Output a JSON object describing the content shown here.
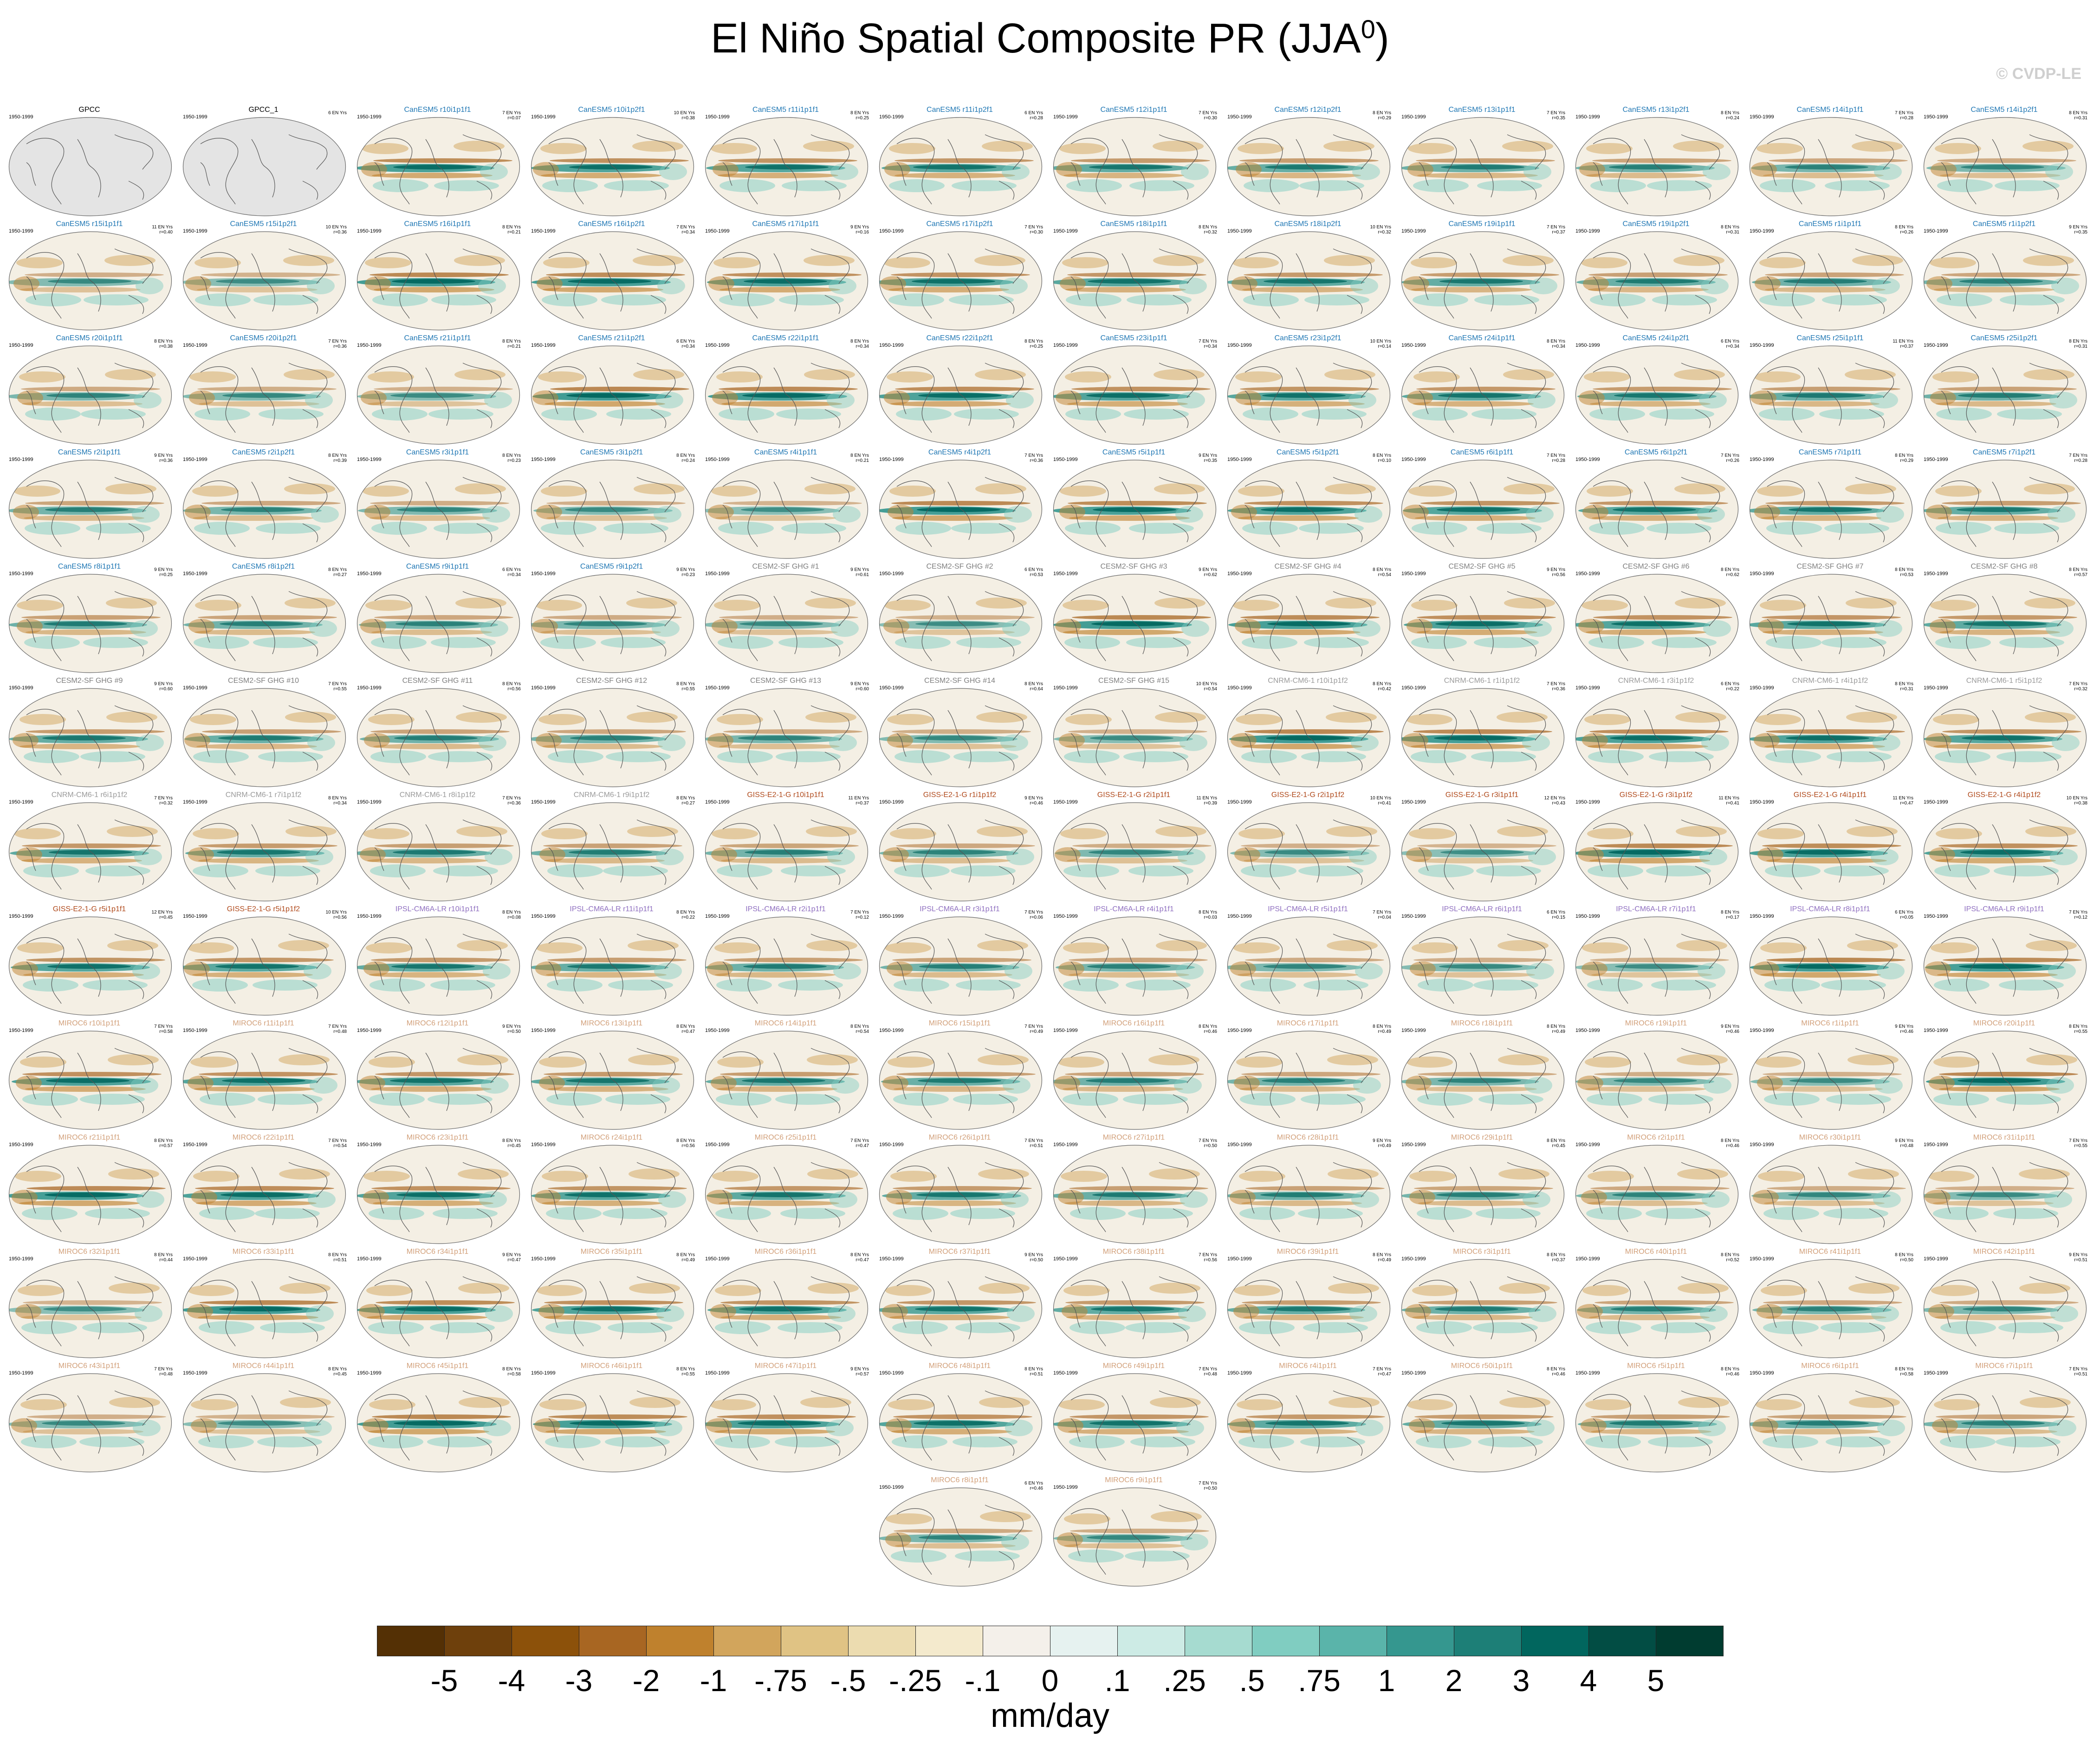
{
  "title": "El Niño Spatial Composite PR (JJA",
  "title_sup": "0",
  "title_close": ")",
  "watermark": "© CVDP-LE",
  "units": "mm/day",
  "years_label": "1950-1999",
  "colorbar": {
    "labels": [
      "-5",
      "-4",
      "-3",
      "-2",
      "-1",
      "-.75",
      "-.5",
      "-.25",
      "-.1",
      "0",
      ".1",
      ".25",
      ".5",
      ".75",
      "1",
      "2",
      "3",
      "4",
      "5"
    ],
    "colors": [
      "#543005",
      "#6e400c",
      "#8c510a",
      "#a86622",
      "#bf812d",
      "#d2a55c",
      "#e0c384",
      "#ecdcb0",
      "#f4eacd",
      "#f4f0ea",
      "#e6f2f0",
      "#cdebe5",
      "#a6dbd0",
      "#80cdc1",
      "#5ab4aa",
      "#35978f",
      "#1d7f77",
      "#01665e",
      "#024d44",
      "#003c30"
    ]
  },
  "group_colors": {
    "obs": "#000000",
    "CanESM5": "#1f77b4",
    "CESM2-SF GHG": "#7f7f7f",
    "CNRM-CM6-1": "#9a9a9a",
    "GISS-E2-1-G": "#b04a1c",
    "IPSL-CM6A-LR": "#8f6fc0",
    "MIROC6": "#d2a07a"
  },
  "panels": [
    {
      "title": "GPCC",
      "group": "obs",
      "stat": ""
    },
    {
      "title": "GPCC_1",
      "group": "obs",
      "stat": "6 EN Yrs"
    },
    {
      "title": "CanESM5 r10i1p1f1",
      "group": "CanESM5",
      "stat": "7 EN Yrs\nr=0.07"
    },
    {
      "title": "CanESM5 r10i1p2f1",
      "group": "CanESM5",
      "stat": "10 EN Yrs\nr=0.38"
    },
    {
      "title": "CanESM5 r11i1p1f1",
      "group": "CanESM5",
      "stat": "8 EN Yrs\nr=0.25"
    },
    {
      "title": "CanESM5 r11i1p2f1",
      "group": "CanESM5",
      "stat": "6 EN Yrs\nr=0.28"
    },
    {
      "title": "CanESM5 r12i1p1f1",
      "group": "CanESM5",
      "stat": "7 EN Yrs\nr=0.30"
    },
    {
      "title": "CanESM5 r12i1p2f1",
      "group": "CanESM5",
      "stat": "8 EN Yrs\nr=0.29"
    },
    {
      "title": "CanESM5 r13i1p1f1",
      "group": "CanESM5",
      "stat": "7 EN Yrs\nr=0.35"
    },
    {
      "title": "CanESM5 r13i1p2f1",
      "group": "CanESM5",
      "stat": "8 EN Yrs\nr=0.24"
    },
    {
      "title": "CanESM5 r14i1p1f1",
      "group": "CanESM5",
      "stat": "7 EN Yrs\nr=0.28"
    },
    {
      "title": "CanESM5 r14i1p2f1",
      "group": "CanESM5",
      "stat": "8 EN Yrs\nr=0.31"
    },
    {
      "title": "CanESM5 r15i1p1f1",
      "group": "CanESM5",
      "stat": "11 EN Yrs\nr=0.40"
    },
    {
      "title": "CanESM5 r15i1p2f1",
      "group": "CanESM5",
      "stat": "10 EN Yrs\nr=0.36"
    },
    {
      "title": "CanESM5 r16i1p1f1",
      "group": "CanESM5",
      "stat": "8 EN Yrs\nr=0.21"
    },
    {
      "title": "CanESM5 r16i1p2f1",
      "group": "CanESM5",
      "stat": "7 EN Yrs\nr=0.34"
    },
    {
      "title": "CanESM5 r17i1p1f1",
      "group": "CanESM5",
      "stat": "9 EN Yrs\nr=0.16"
    },
    {
      "title": "CanESM5 r17i1p2f1",
      "group": "CanESM5",
      "stat": "7 EN Yrs\nr=0.30"
    },
    {
      "title": "CanESM5 r18i1p1f1",
      "group": "CanESM5",
      "stat": "8 EN Yrs\nr=0.32"
    },
    {
      "title": "CanESM5 r18i1p2f1",
      "group": "CanESM5",
      "stat": "10 EN Yrs\nr=0.32"
    },
    {
      "title": "CanESM5 r19i1p1f1",
      "group": "CanESM5",
      "stat": "7 EN Yrs\nr=0.37"
    },
    {
      "title": "CanESM5 r19i1p2f1",
      "group": "CanESM5",
      "stat": "8 EN Yrs\nr=0.31"
    },
    {
      "title": "CanESM5 r1i1p1f1",
      "group": "CanESM5",
      "stat": "8 EN Yrs\nr=0.26"
    },
    {
      "title": "CanESM5 r1i1p2f1",
      "group": "CanESM5",
      "stat": "9 EN Yrs\nr=0.35"
    },
    {
      "title": "CanESM5 r20i1p1f1",
      "group": "CanESM5",
      "stat": "8 EN Yrs\nr=0.38"
    },
    {
      "title": "CanESM5 r20i1p2f1",
      "group": "CanESM5",
      "stat": "7 EN Yrs\nr=0.36"
    },
    {
      "title": "CanESM5 r21i1p1f1",
      "group": "CanESM5",
      "stat": "8 EN Yrs\nr=0.21"
    },
    {
      "title": "CanESM5 r21i1p2f1",
      "group": "CanESM5",
      "stat": "6 EN Yrs\nr=0.34"
    },
    {
      "title": "CanESM5 r22i1p1f1",
      "group": "CanESM5",
      "stat": "8 EN Yrs\nr=0.34"
    },
    {
      "title": "CanESM5 r22i1p2f1",
      "group": "CanESM5",
      "stat": "8 EN Yrs\nr=0.25"
    },
    {
      "title": "CanESM5 r23i1p1f1",
      "group": "CanESM5",
      "stat": "7 EN Yrs\nr=0.34"
    },
    {
      "title": "CanESM5 r23i1p2f1",
      "group": "CanESM5",
      "stat": "10 EN Yrs\nr=0.14"
    },
    {
      "title": "CanESM5 r24i1p1f1",
      "group": "CanESM5",
      "stat": "8 EN Yrs\nr=0.34"
    },
    {
      "title": "CanESM5 r24i1p2f1",
      "group": "CanESM5",
      "stat": "6 EN Yrs\nr=0.34"
    },
    {
      "title": "CanESM5 r25i1p1f1",
      "group": "CanESM5",
      "stat": "11 EN Yrs\nr=0.37"
    },
    {
      "title": "CanESM5 r25i1p2f1",
      "group": "CanESM5",
      "stat": "8 EN Yrs\nr=0.31"
    },
    {
      "title": "CanESM5 r2i1p1f1",
      "group": "CanESM5",
      "stat": "9 EN Yrs\nr=0.36"
    },
    {
      "title": "CanESM5 r2i1p2f1",
      "group": "CanESM5",
      "stat": "8 EN Yrs\nr=0.39"
    },
    {
      "title": "CanESM5 r3i1p1f1",
      "group": "CanESM5",
      "stat": "8 EN Yrs\nr=0.23"
    },
    {
      "title": "CanESM5 r3i1p2f1",
      "group": "CanESM5",
      "stat": "8 EN Yrs\nr=0.24"
    },
    {
      "title": "CanESM5 r4i1p1f1",
      "group": "CanESM5",
      "stat": "8 EN Yrs\nr=0.21"
    },
    {
      "title": "CanESM5 r4i1p2f1",
      "group": "CanESM5",
      "stat": "7 EN Yrs\nr=0.36"
    },
    {
      "title": "CanESM5 r5i1p1f1",
      "group": "CanESM5",
      "stat": "9 EN Yrs\nr=0.35"
    },
    {
      "title": "CanESM5 r5i1p2f1",
      "group": "CanESM5",
      "stat": "8 EN Yrs\nr=0.10"
    },
    {
      "title": "CanESM5 r6i1p1f1",
      "group": "CanESM5",
      "stat": "7 EN Yrs\nr=0.28"
    },
    {
      "title": "CanESM5 r6i1p2f1",
      "group": "CanESM5",
      "stat": "7 EN Yrs\nr=0.26"
    },
    {
      "title": "CanESM5 r7i1p1f1",
      "group": "CanESM5",
      "stat": "8 EN Yrs\nr=0.29"
    },
    {
      "title": "CanESM5 r7i1p2f1",
      "group": "CanESM5",
      "stat": "7 EN Yrs\nr=0.28"
    },
    {
      "title": "CanESM5 r8i1p1f1",
      "group": "CanESM5",
      "stat": "9 EN Yrs\nr=0.25"
    },
    {
      "title": "CanESM5 r8i1p2f1",
      "group": "CanESM5",
      "stat": "8 EN Yrs\nr=0.27"
    },
    {
      "title": "CanESM5 r9i1p1f1",
      "group": "CanESM5",
      "stat": "6 EN Yrs\nr=0.34"
    },
    {
      "title": "CanESM5 r9i1p2f1",
      "group": "CanESM5",
      "stat": "9 EN Yrs\nr=0.23"
    },
    {
      "title": "CESM2-SF GHG #1",
      "group": "CESM2-SF GHG",
      "stat": "9 EN Yrs\nr=0.61"
    },
    {
      "title": "CESM2-SF GHG #2",
      "group": "CESM2-SF GHG",
      "stat": "6 EN Yrs\nr=0.53"
    },
    {
      "title": "CESM2-SF GHG #3",
      "group": "CESM2-SF GHG",
      "stat": "9 EN Yrs\nr=0.62"
    },
    {
      "title": "CESM2-SF GHG #4",
      "group": "CESM2-SF GHG",
      "stat": "8 EN Yrs\nr=0.54"
    },
    {
      "title": "CESM2-SF GHG #5",
      "group": "CESM2-SF GHG",
      "stat": "9 EN Yrs\nr=0.56"
    },
    {
      "title": "CESM2-SF GHG #6",
      "group": "CESM2-SF GHG",
      "stat": "8 EN Yrs\nr=0.62"
    },
    {
      "title": "CESM2-SF GHG #7",
      "group": "CESM2-SF GHG",
      "stat": "8 EN Yrs\nr=0.53"
    },
    {
      "title": "CESM2-SF GHG #8",
      "group": "CESM2-SF GHG",
      "stat": "8 EN Yrs\nr=0.57"
    },
    {
      "title": "CESM2-SF GHG #9",
      "group": "CESM2-SF GHG",
      "stat": "9 EN Yrs\nr=0.60"
    },
    {
      "title": "CESM2-SF GHG #10",
      "group": "CESM2-SF GHG",
      "stat": "7 EN Yrs\nr=0.55"
    },
    {
      "title": "CESM2-SF GHG #11",
      "group": "CESM2-SF GHG",
      "stat": "8 EN Yrs\nr=0.56"
    },
    {
      "title": "CESM2-SF GHG #12",
      "group": "CESM2-SF GHG",
      "stat": "8 EN Yrs\nr=0.55"
    },
    {
      "title": "CESM2-SF GHG #13",
      "group": "CESM2-SF GHG",
      "stat": "9 EN Yrs\nr=0.60"
    },
    {
      "title": "CESM2-SF GHG #14",
      "group": "CESM2-SF GHG",
      "stat": "8 EN Yrs\nr=0.64"
    },
    {
      "title": "CESM2-SF GHG #15",
      "group": "CESM2-SF GHG",
      "stat": "10 EN Yrs\nr=0.54"
    },
    {
      "title": "CNRM-CM6-1 r10i1p1f2",
      "group": "CNRM-CM6-1",
      "stat": "8 EN Yrs\nr=0.42"
    },
    {
      "title": "CNRM-CM6-1 r1i1p1f2",
      "group": "CNRM-CM6-1",
      "stat": "7 EN Yrs\nr=0.36"
    },
    {
      "title": "CNRM-CM6-1 r3i1p1f2",
      "group": "CNRM-CM6-1",
      "stat": "6 EN Yrs\nr=0.22"
    },
    {
      "title": "CNRM-CM6-1 r4i1p1f2",
      "group": "CNRM-CM6-1",
      "stat": "8 EN Yrs\nr=0.31"
    },
    {
      "title": "CNRM-CM6-1 r5i1p1f2",
      "group": "CNRM-CM6-1",
      "stat": "7 EN Yrs\nr=0.32"
    },
    {
      "title": "CNRM-CM6-1 r6i1p1f2",
      "group": "CNRM-CM6-1",
      "stat": "7 EN Yrs\nr=0.32"
    },
    {
      "title": "CNRM-CM6-1 r7i1p1f2",
      "group": "CNRM-CM6-1",
      "stat": "8 EN Yrs\nr=0.34"
    },
    {
      "title": "CNRM-CM6-1 r8i1p1f2",
      "group": "CNRM-CM6-1",
      "stat": "7 EN Yrs\nr=0.36"
    },
    {
      "title": "CNRM-CM6-1 r9i1p1f2",
      "group": "CNRM-CM6-1",
      "stat": "8 EN Yrs\nr=0.27"
    },
    {
      "title": "GISS-E2-1-G r10i1p1f1",
      "group": "GISS-E2-1-G",
      "stat": "11 EN Yrs\nr=0.37"
    },
    {
      "title": "GISS-E2-1-G r1i1p1f2",
      "group": "GISS-E2-1-G",
      "stat": "9 EN Yrs\nr=0.46"
    },
    {
      "title": "GISS-E2-1-G r2i1p1f1",
      "group": "GISS-E2-1-G",
      "stat": "11 EN Yrs\nr=0.39"
    },
    {
      "title": "GISS-E2-1-G r2i1p1f2",
      "group": "GISS-E2-1-G",
      "stat": "10 EN Yrs\nr=0.41"
    },
    {
      "title": "GISS-E2-1-G r3i1p1f1",
      "group": "GISS-E2-1-G",
      "stat": "12 EN Yrs\nr=0.43"
    },
    {
      "title": "GISS-E2-1-G r3i1p1f2",
      "group": "GISS-E2-1-G",
      "stat": "11 EN Yrs\nr=0.41"
    },
    {
      "title": "GISS-E2-1-G r4i1p1f1",
      "group": "GISS-E2-1-G",
      "stat": "11 EN Yrs\nr=0.47"
    },
    {
      "title": "GISS-E2-1-G r4i1p1f2",
      "group": "GISS-E2-1-G",
      "stat": "10 EN Yrs\nr=0.38"
    },
    {
      "title": "GISS-E2-1-G r5i1p1f1",
      "group": "GISS-E2-1-G",
      "stat": "12 EN Yrs\nr=0.45"
    },
    {
      "title": "GISS-E2-1-G r5i1p1f2",
      "group": "GISS-E2-1-G",
      "stat": "10 EN Yrs\nr=0.56"
    },
    {
      "title": "IPSL-CM6A-LR r10i1p1f1",
      "group": "IPSL-CM6A-LR",
      "stat": "8 EN Yrs\nr=0.08"
    },
    {
      "title": "IPSL-CM6A-LR r11i1p1f1",
      "group": "IPSL-CM6A-LR",
      "stat": "8 EN Yrs\nr=0.22"
    },
    {
      "title": "IPSL-CM6A-LR r2i1p1f1",
      "group": "IPSL-CM6A-LR",
      "stat": "7 EN Yrs\nr=0.12"
    },
    {
      "title": "IPSL-CM6A-LR r3i1p1f1",
      "group": "IPSL-CM6A-LR",
      "stat": "7 EN Yrs\nr=0.06"
    },
    {
      "title": "IPSL-CM6A-LR r4i1p1f1",
      "group": "IPSL-CM6A-LR",
      "stat": "8 EN Yrs\nr=0.03"
    },
    {
      "title": "IPSL-CM6A-LR r5i1p1f1",
      "group": "IPSL-CM6A-LR",
      "stat": "7 EN Yrs\nr=0.04"
    },
    {
      "title": "IPSL-CM6A-LR r6i1p1f1",
      "group": "IPSL-CM6A-LR",
      "stat": "6 EN Yrs\nr=0.15"
    },
    {
      "title": "IPSL-CM6A-LR r7i1p1f1",
      "group": "IPSL-CM6A-LR",
      "stat": "8 EN Yrs\nr=0.17"
    },
    {
      "title": "IPSL-CM6A-LR r8i1p1f1",
      "group": "IPSL-CM6A-LR",
      "stat": "6 EN Yrs\nr=0.05"
    },
    {
      "title": "IPSL-CM6A-LR r9i1p1f1",
      "group": "IPSL-CM6A-LR",
      "stat": "7 EN Yrs\nr=0.12"
    },
    {
      "title": "MIROC6 r10i1p1f1",
      "group": "MIROC6",
      "stat": "7 EN Yrs\nr=0.58"
    },
    {
      "title": "MIROC6 r11i1p1f1",
      "group": "MIROC6",
      "stat": "7 EN Yrs\nr=0.48"
    },
    {
      "title": "MIROC6 r12i1p1f1",
      "group": "MIROC6",
      "stat": "9 EN Yrs\nr=0.50"
    },
    {
      "title": "MIROC6 r13i1p1f1",
      "group": "MIROC6",
      "stat": "8 EN Yrs\nr=0.47"
    },
    {
      "title": "MIROC6 r14i1p1f1",
      "group": "MIROC6",
      "stat": "8 EN Yrs\nr=0.54"
    },
    {
      "title": "MIROC6 r15i1p1f1",
      "group": "MIROC6",
      "stat": "7 EN Yrs\nr=0.49"
    },
    {
      "title": "MIROC6 r16i1p1f1",
      "group": "MIROC6",
      "stat": "8 EN Yrs\nr=0.46"
    },
    {
      "title": "MIROC6 r17i1p1f1",
      "group": "MIROC6",
      "stat": "8 EN Yrs\nr=0.49"
    },
    {
      "title": "MIROC6 r18i1p1f1",
      "group": "MIROC6",
      "stat": "8 EN Yrs\nr=0.49"
    },
    {
      "title": "MIROC6 r19i1p1f1",
      "group": "MIROC6",
      "stat": "9 EN Yrs\nr=0.46"
    },
    {
      "title": "MIROC6 r1i1p1f1",
      "group": "MIROC6",
      "stat": "9 EN Yrs\nr=0.46"
    },
    {
      "title": "MIROC6 r20i1p1f1",
      "group": "MIROC6",
      "stat": "8 EN Yrs\nr=0.55"
    },
    {
      "title": "MIROC6 r21i1p1f1",
      "group": "MIROC6",
      "stat": "8 EN Yrs\nr=0.57"
    },
    {
      "title": "MIROC6 r22i1p1f1",
      "group": "MIROC6",
      "stat": "7 EN Yrs\nr=0.54"
    },
    {
      "title": "MIROC6 r23i1p1f1",
      "group": "MIROC6",
      "stat": "8 EN Yrs\nr=0.45"
    },
    {
      "title": "MIROC6 r24i1p1f1",
      "group": "MIROC6",
      "stat": "8 EN Yrs\nr=0.56"
    },
    {
      "title": "MIROC6 r25i1p1f1",
      "group": "MIROC6",
      "stat": "7 EN Yrs\nr=0.47"
    },
    {
      "title": "MIROC6 r26i1p1f1",
      "group": "MIROC6",
      "stat": "7 EN Yrs\nr=0.51"
    },
    {
      "title": "MIROC6 r27i1p1f1",
      "group": "MIROC6",
      "stat": "7 EN Yrs\nr=0.50"
    },
    {
      "title": "MIROC6 r28i1p1f1",
      "group": "MIROC6",
      "stat": "9 EN Yrs\nr=0.49"
    },
    {
      "title": "MIROC6 r29i1p1f1",
      "group": "MIROC6",
      "stat": "8 EN Yrs\nr=0.45"
    },
    {
      "title": "MIROC6 r2i1p1f1",
      "group": "MIROC6",
      "stat": "8 EN Yrs\nr=0.46"
    },
    {
      "title": "MIROC6 r30i1p1f1",
      "group": "MIROC6",
      "stat": "9 EN Yrs\nr=0.48"
    },
    {
      "title": "MIROC6 r31i1p1f1",
      "group": "MIROC6",
      "stat": "7 EN Yrs\nr=0.55"
    },
    {
      "title": "MIROC6 r32i1p1f1",
      "group": "MIROC6",
      "stat": "8 EN Yrs\nr=0.44"
    },
    {
      "title": "MIROC6 r33i1p1f1",
      "group": "MIROC6",
      "stat": "8 EN Yrs\nr=0.51"
    },
    {
      "title": "MIROC6 r34i1p1f1",
      "group": "MIROC6",
      "stat": "9 EN Yrs\nr=0.47"
    },
    {
      "title": "MIROC6 r35i1p1f1",
      "group": "MIROC6",
      "stat": "8 EN Yrs\nr=0.49"
    },
    {
      "title": "MIROC6 r36i1p1f1",
      "group": "MIROC6",
      "stat": "8 EN Yrs\nr=0.47"
    },
    {
      "title": "MIROC6 r37i1p1f1",
      "group": "MIROC6",
      "stat": "9 EN Yrs\nr=0.50"
    },
    {
      "title": "MIROC6 r38i1p1f1",
      "group": "MIROC6",
      "stat": "7 EN Yrs\nr=0.56"
    },
    {
      "title": "MIROC6 r39i1p1f1",
      "group": "MIROC6",
      "stat": "8 EN Yrs\nr=0.49"
    },
    {
      "title": "MIROC6 r3i1p1f1",
      "group": "MIROC6",
      "stat": "8 EN Yrs\nr=0.37"
    },
    {
      "title": "MIROC6 r40i1p1f1",
      "group": "MIROC6",
      "stat": "8 EN Yrs\nr=0.52"
    },
    {
      "title": "MIROC6 r41i1p1f1",
      "group": "MIROC6",
      "stat": "8 EN Yrs\nr=0.50"
    },
    {
      "title": "MIROC6 r42i1p1f1",
      "group": "MIROC6",
      "stat": "9 EN Yrs\nr=0.51"
    },
    {
      "title": "MIROC6 r43i1p1f1",
      "group": "MIROC6",
      "stat": "7 EN Yrs\nr=0.48"
    },
    {
      "title": "MIROC6 r44i1p1f1",
      "group": "MIROC6",
      "stat": "8 EN Yrs\nr=0.45"
    },
    {
      "title": "MIROC6 r45i1p1f1",
      "group": "MIROC6",
      "stat": "8 EN Yrs\nr=0.58"
    },
    {
      "title": "MIROC6 r46i1p1f1",
      "group": "MIROC6",
      "stat": "8 EN Yrs\nr=0.55"
    },
    {
      "title": "MIROC6 r47i1p1f1",
      "group": "MIROC6",
      "stat": "9 EN Yrs\nr=0.57"
    },
    {
      "title": "MIROC6 r48i1p1f1",
      "group": "MIROC6",
      "stat": "8 EN Yrs\nr=0.51"
    },
    {
      "title": "MIROC6 r49i1p1f1",
      "group": "MIROC6",
      "stat": "7 EN Yrs\nr=0.48"
    },
    {
      "title": "MIROC6 r4i1p1f1",
      "group": "MIROC6",
      "stat": "7 EN Yrs\nr=0.47"
    },
    {
      "title": "MIROC6 r50i1p1f1",
      "group": "MIROC6",
      "stat": "8 EN Yrs\nr=0.46"
    },
    {
      "title": "MIROC6 r5i1p1f1",
      "group": "MIROC6",
      "stat": "8 EN Yrs\nr=0.46"
    },
    {
      "title": "MIROC6 r6i1p1f1",
      "group": "MIROC6",
      "stat": "8 EN Yrs\nr=0.58"
    },
    {
      "title": "MIROC6 r7i1p1f1",
      "group": "MIROC6",
      "stat": "7 EN Yrs\nr=0.51"
    },
    {
      "title": "MIROC6 r8i1p1f1",
      "group": "MIROC6",
      "stat": "6 EN Yrs\nr=0.46"
    },
    {
      "title": "MIROC6 r9i1p1f1",
      "group": "MIROC6",
      "stat": "7 EN Yrs\nr=0.50"
    }
  ]
}
